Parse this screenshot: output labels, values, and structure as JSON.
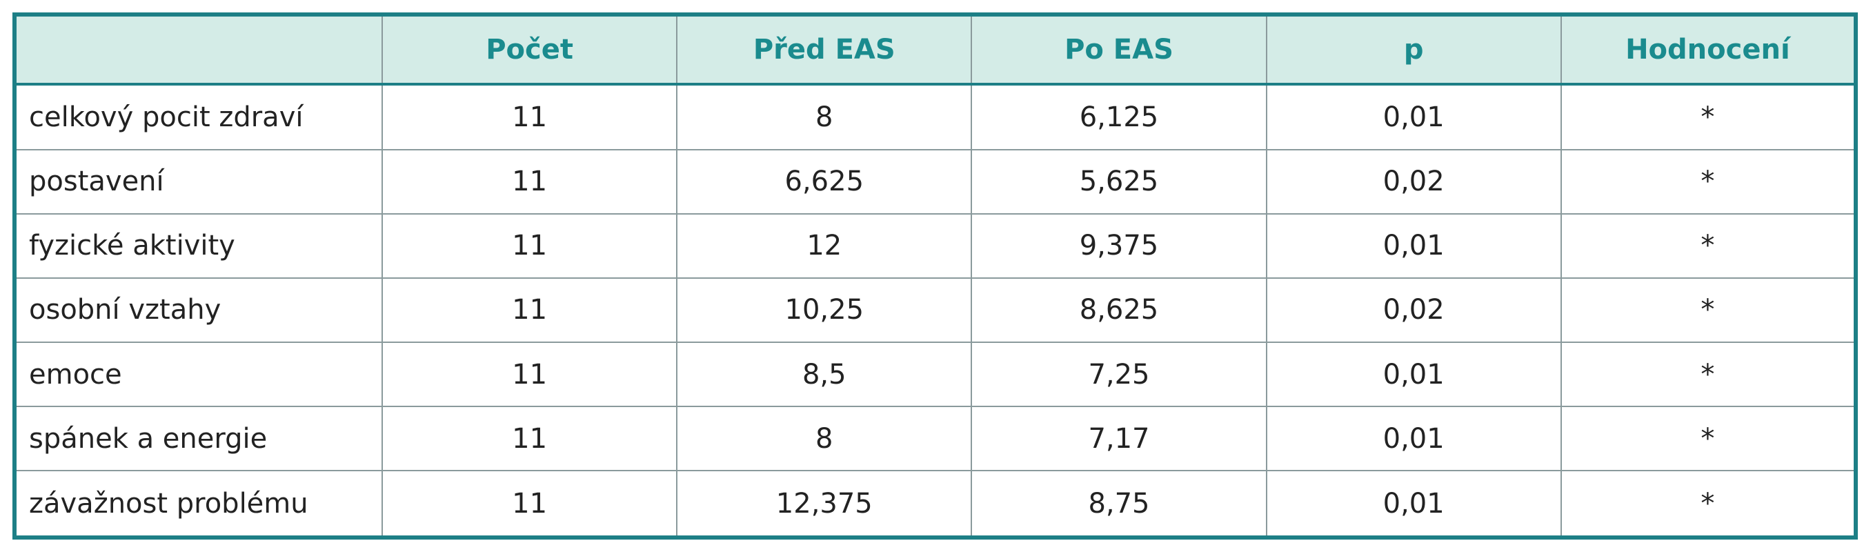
{
  "table": {
    "header": [
      "Počet",
      "Před EAS",
      "Po EAS",
      "p",
      "Hodnocení"
    ],
    "rows": [
      [
        "celkový pocit zdraví",
        "11",
        "8",
        "6,125",
        "0,01",
        "*"
      ],
      [
        "postavení",
        "11",
        "6,625",
        "5,625",
        "0,02",
        "*"
      ],
      [
        "fyzické aktivity",
        "11",
        "12",
        "9,375",
        "0,01",
        "*"
      ],
      [
        "osobní vztahy",
        "11",
        "10,25",
        "8,625",
        "0,02",
        "*"
      ],
      [
        "emoce",
        "11",
        "8,5",
        "7,25",
        "0,01",
        "*"
      ],
      [
        "spánek a energie",
        "11",
        "8",
        "7,17",
        "0,01",
        "*"
      ],
      [
        "závažnost problému",
        "11",
        "12,375",
        "8,75",
        "0,01",
        "*"
      ]
    ]
  }
}
